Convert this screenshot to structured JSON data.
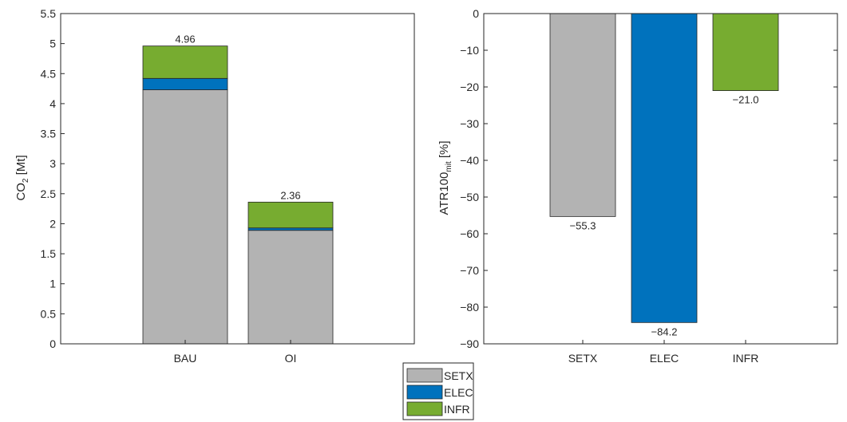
{
  "colors": {
    "SETX": "#b3b3b3",
    "ELEC": "#0072bd",
    "INFR": "#77ac30",
    "axis": "#262626",
    "bar_edge": "#262626"
  },
  "chart_data": [
    {
      "type": "bar",
      "stacked": true,
      "ylabel_main": "CO",
      "ylabel_sub": "2",
      "ylabel_tail": " [Mt]",
      "categories": [
        "BAU",
        "OI"
      ],
      "ylim": [
        0,
        5.5
      ],
      "yticks": [
        "0",
        "0.5",
        "1",
        "1.5",
        "2",
        "2.5",
        "3",
        "3.5",
        "4",
        "4.5",
        "5",
        "5.5"
      ],
      "ytick_values": [
        0,
        0.5,
        1,
        1.5,
        2,
        2.5,
        3,
        3.5,
        4,
        4.5,
        5,
        5.5
      ],
      "series": [
        {
          "name": "SETX",
          "values": [
            4.23,
            1.89
          ]
        },
        {
          "name": "ELEC",
          "values": [
            0.19,
            0.04
          ]
        },
        {
          "name": "INFR",
          "values": [
            0.54,
            0.43
          ]
        }
      ],
      "total_labels": [
        "4.96",
        "2.36"
      ],
      "totals": [
        4.96,
        2.36
      ],
      "grid": false,
      "box": true
    },
    {
      "type": "bar",
      "stacked": false,
      "ylabel_main": "ATR100",
      "ylabel_sub": "mit",
      "ylabel_tail": " [%]",
      "categories": [
        "SETX",
        "ELEC",
        "INFR"
      ],
      "ylim": [
        -90,
        0
      ],
      "yticks": [
        "0",
        "−10",
        "−20",
        "−30",
        "−40",
        "−50",
        "−60",
        "−70",
        "−80",
        "−90"
      ],
      "ytick_values": [
        0,
        -10,
        -20,
        -30,
        -40,
        -50,
        -60,
        -70,
        -80,
        -90
      ],
      "values": [
        -55.3,
        -84.2,
        -21.0
      ],
      "value_labels": [
        "−55.3",
        "−84.2",
        "−21.0"
      ],
      "grid": false,
      "box": true
    }
  ],
  "legend": {
    "placement": "bottom-center",
    "items": [
      "SETX",
      "ELEC",
      "INFR"
    ]
  }
}
